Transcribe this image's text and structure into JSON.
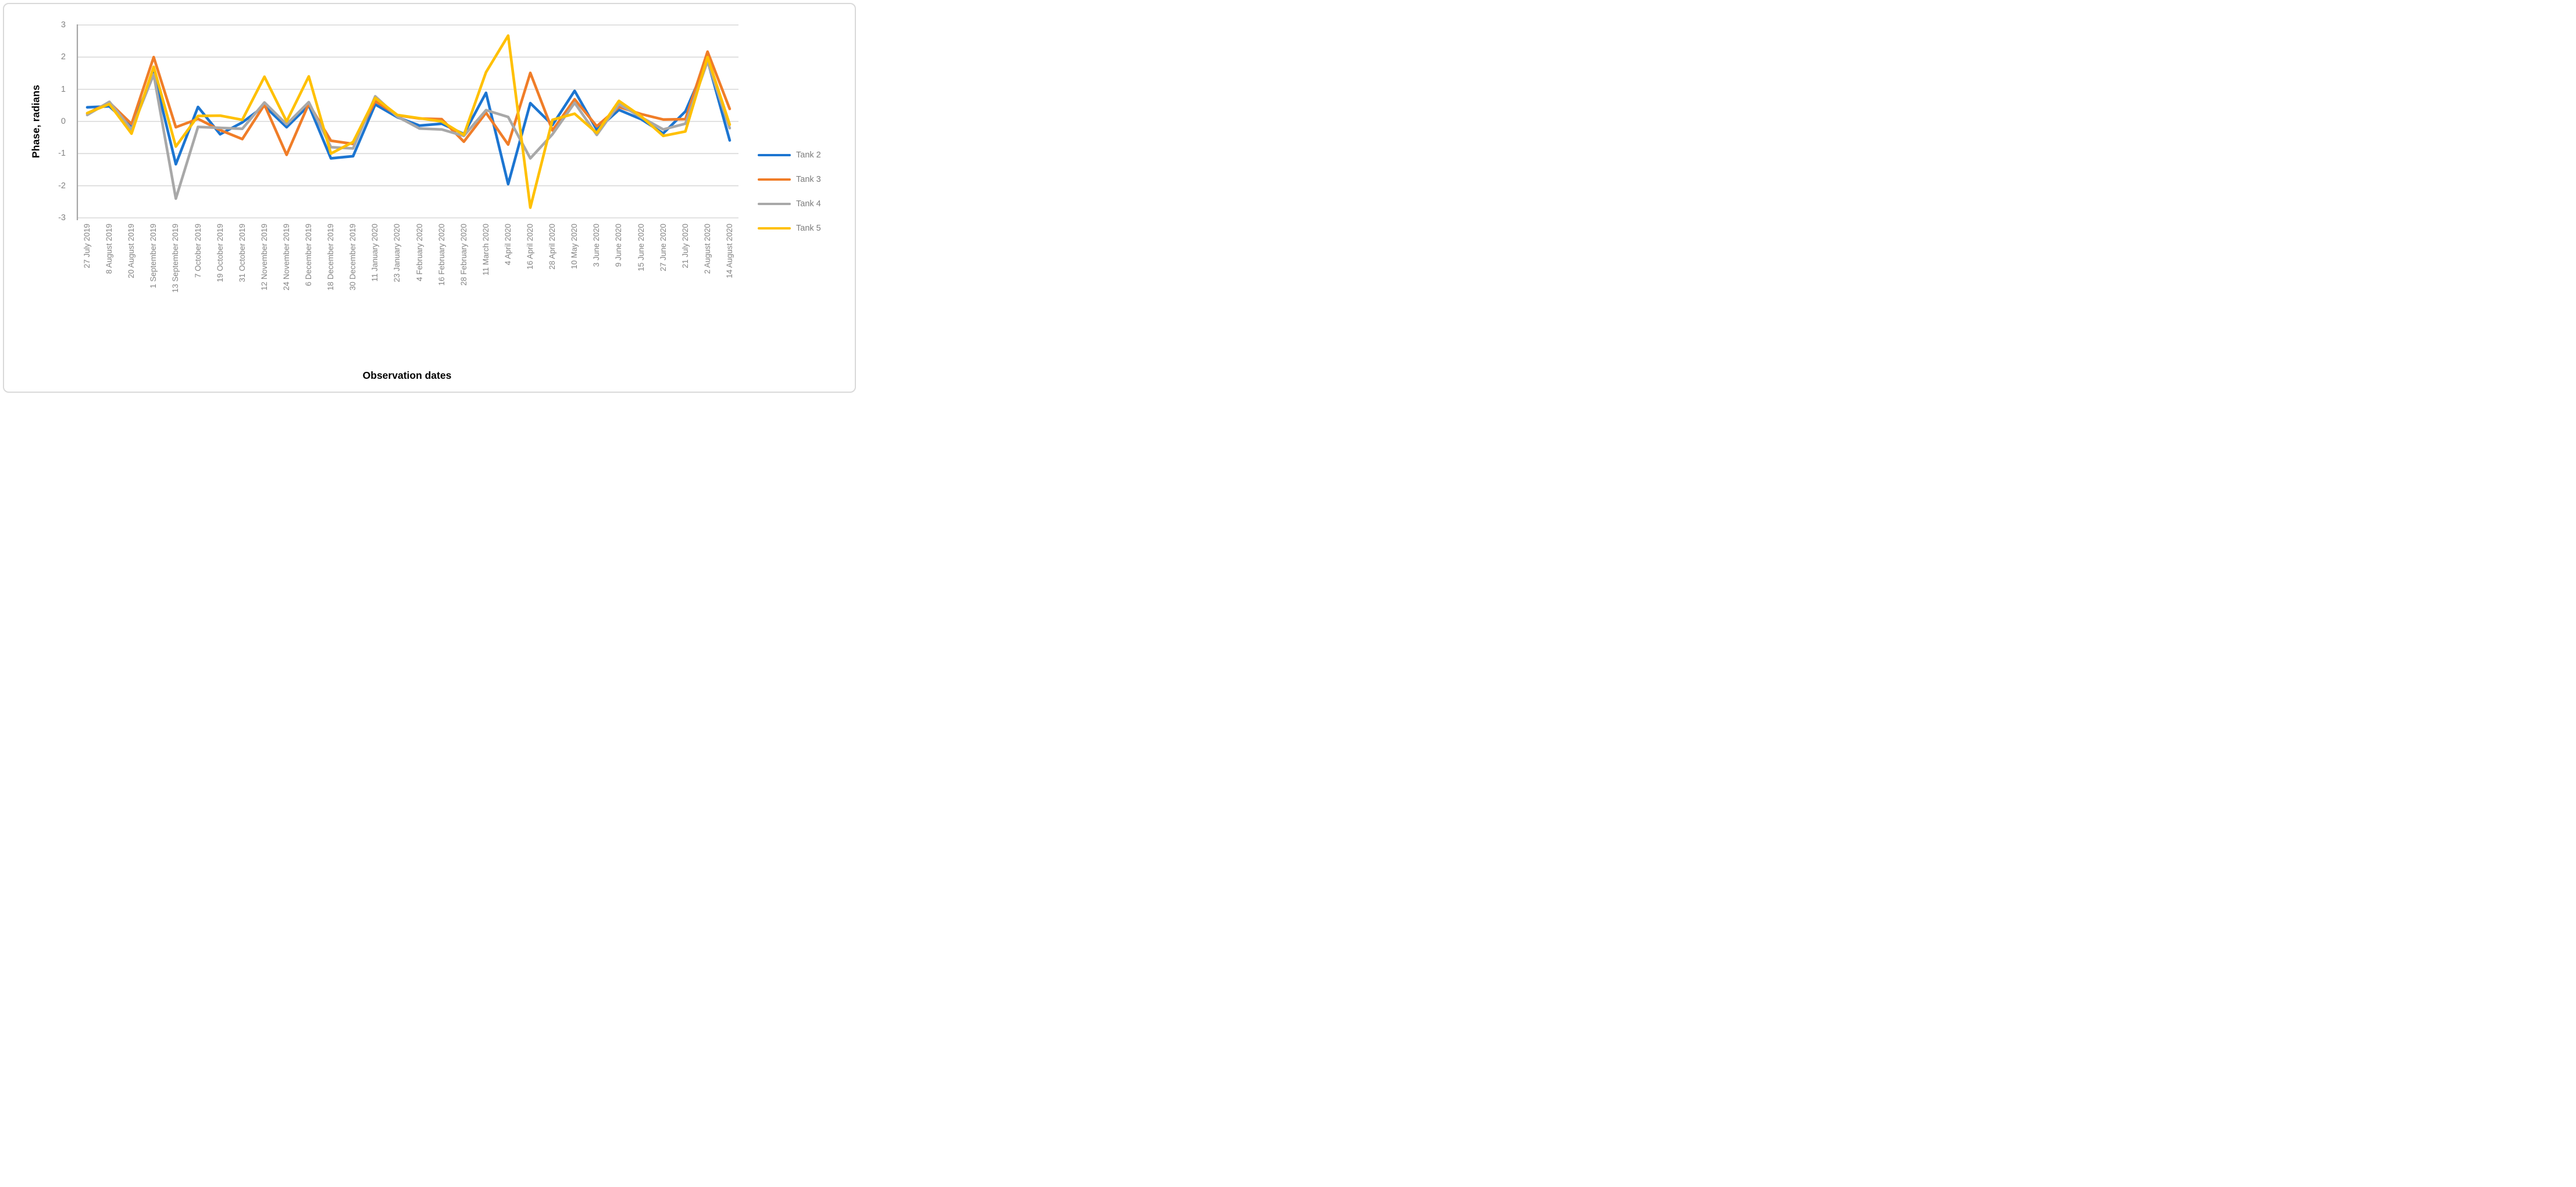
{
  "figure": {
    "background": "#ffffff",
    "border_color": "#d9d9d9"
  },
  "y_axis": {
    "title": "Phase, radians",
    "ticks": [
      "3",
      "2",
      "1",
      "0",
      "-1",
      "-2",
      "-3"
    ],
    "tick_color": "#848484",
    "axis_line_color": "#a6a6a6"
  },
  "x_axis": {
    "title": "Observation dates",
    "label_color": "#848484"
  },
  "legend": {
    "position": "right",
    "items": [
      {
        "label": "Tank 2",
        "color": "#1c75d1"
      },
      {
        "label": "Tank 3",
        "color": "#f07d28"
      },
      {
        "label": "Tank 4",
        "color": "#a8a8a8"
      },
      {
        "label": "Tank 5",
        "color": "#ffc000"
      }
    ]
  },
  "chart_data": {
    "type": "line",
    "title": "",
    "xlabel": "Observation dates",
    "ylabel": "Phase, radians",
    "ylim": [
      -3,
      3
    ],
    "ytick_step": 1,
    "grid": true,
    "gridline_color": "#d9d9d9",
    "legend_position": "right",
    "categories": [
      "27 July 2019",
      "8 August 2019",
      "20 August 2019",
      "1 September 2019",
      "13 September 2019",
      "7 October 2019",
      "19 October 2019",
      "31 October 2019",
      "12 November 2019",
      "24 November 2019",
      "6 December 2019",
      "18 December 2019",
      "30 December 2019",
      "11 January 2020",
      "23 January 2020",
      "4 February 2020",
      "16 February 2020",
      "28 February 2020",
      "11 March 2020",
      "4 April 2020",
      "16 April 2020",
      "28 April 2020",
      "10 May 2020",
      "3 June 2020",
      "9 June 2020",
      "15 June 2020",
      "27 June 2020",
      "21 July 2020",
      "2 August 2020",
      "14 August 2020"
    ],
    "series": [
      {
        "name": "Tank 2",
        "color": "#1c75d1",
        "values": [
          0.44,
          0.47,
          -0.16,
          1.52,
          -1.33,
          0.45,
          -0.4,
          -0.03,
          0.48,
          -0.18,
          0.5,
          -1.15,
          -1.08,
          0.53,
          0.13,
          -0.13,
          -0.07,
          -0.39,
          0.89,
          -1.95,
          0.57,
          -0.11,
          0.95,
          -0.26,
          0.36,
          0.07,
          -0.37,
          0.31,
          1.9,
          -0.59
        ]
      },
      {
        "name": "Tank 3",
        "color": "#f07d28",
        "values": [
          0.25,
          0.59,
          -0.08,
          2.0,
          -0.18,
          0.08,
          -0.27,
          -0.55,
          0.52,
          -1.04,
          0.55,
          -0.6,
          -0.7,
          0.63,
          0.19,
          0.09,
          0.07,
          -0.63,
          0.27,
          -0.72,
          1.51,
          -0.28,
          0.69,
          -0.15,
          0.45,
          0.23,
          0.06,
          0.07,
          2.17,
          0.39
        ]
      },
      {
        "name": "Tank 4",
        "color": "#a8a8a8",
        "values": [
          0.2,
          0.61,
          -0.25,
          1.46,
          -2.4,
          -0.17,
          -0.2,
          -0.23,
          0.59,
          -0.09,
          0.6,
          -0.8,
          -0.84,
          0.78,
          0.15,
          -0.22,
          -0.25,
          -0.45,
          0.35,
          0.14,
          -1.15,
          -0.4,
          0.58,
          -0.42,
          0.54,
          0.13,
          -0.25,
          -0.07,
          1.87,
          -0.21
        ]
      },
      {
        "name": "Tank 5",
        "color": "#ffc000",
        "values": [
          0.26,
          0.54,
          -0.38,
          1.7,
          -0.78,
          0.17,
          0.18,
          0.05,
          1.39,
          0.0,
          1.4,
          -1.0,
          -0.64,
          0.73,
          0.2,
          0.1,
          0.0,
          -0.42,
          1.53,
          2.67,
          -2.68,
          0.05,
          0.24,
          -0.36,
          0.64,
          0.16,
          -0.45,
          -0.31,
          2.0,
          -0.1
        ]
      }
    ]
  }
}
